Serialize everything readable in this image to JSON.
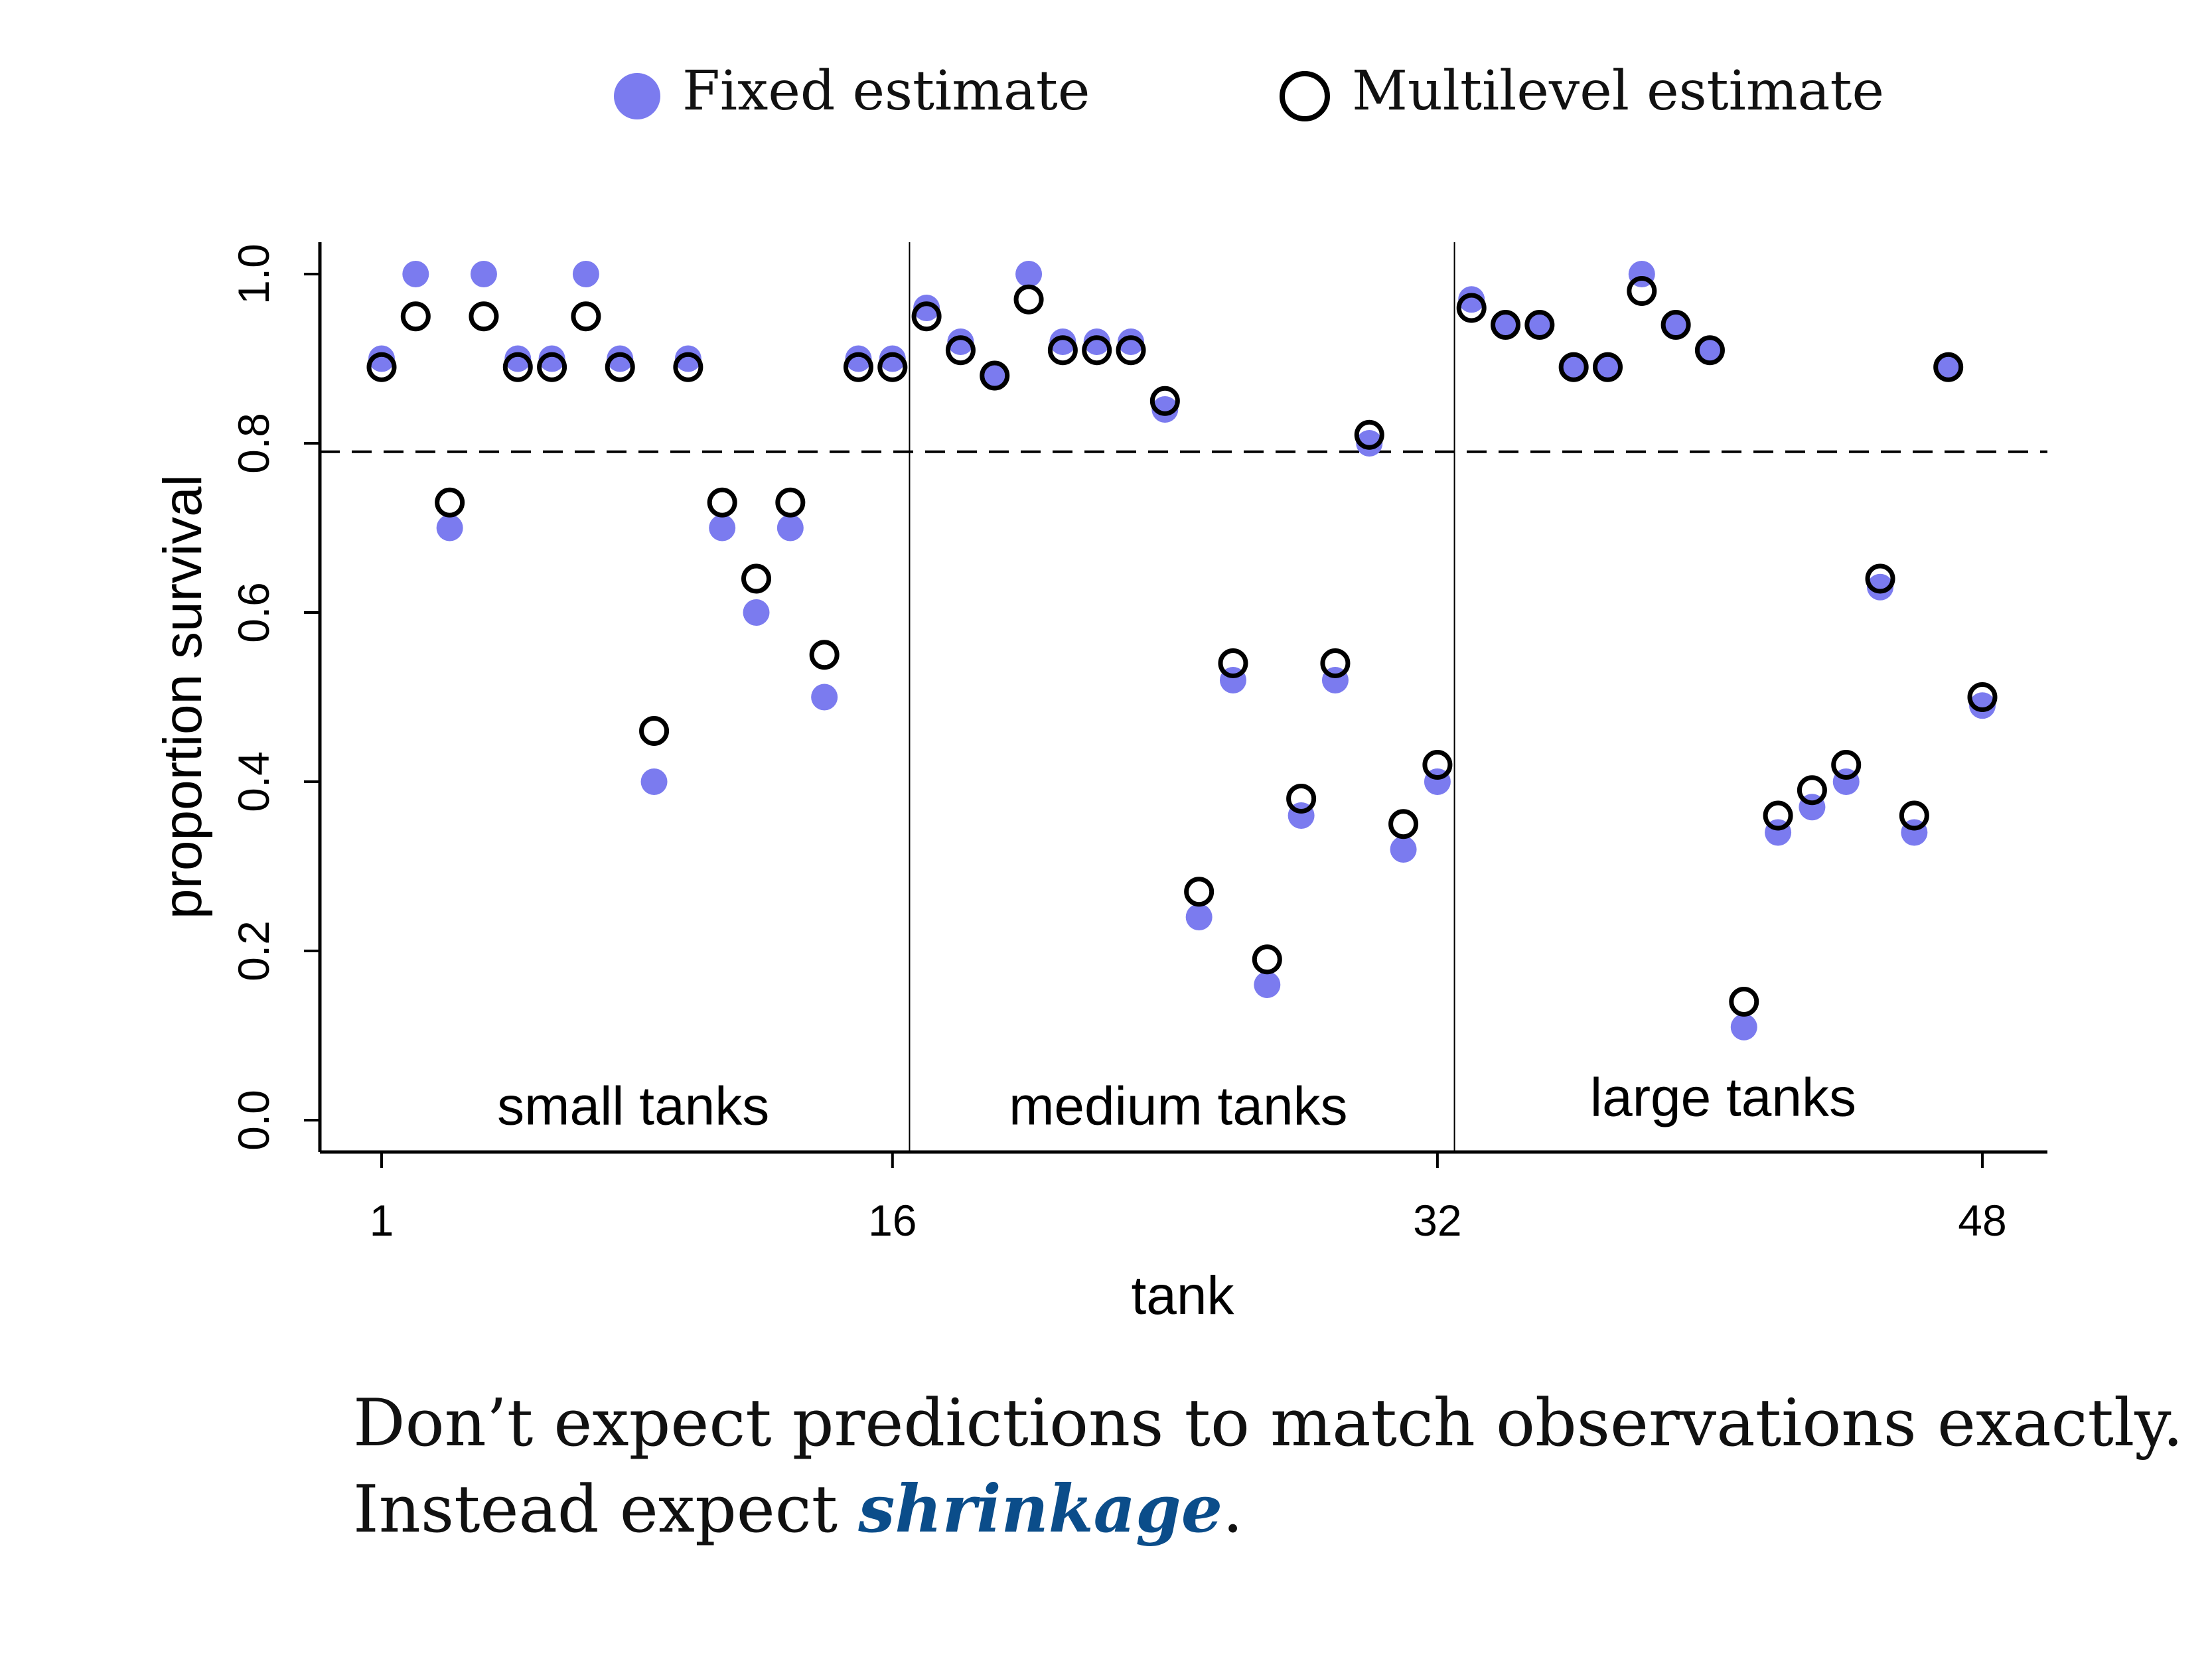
{
  "colors": {
    "fixed_fill": "#7b7bef",
    "multilevel_stroke": "#000000",
    "emphasis": "#0b4d8a",
    "text": "#111111"
  },
  "legend": {
    "fixed_label": "Fixed estimate",
    "multilevel_label": "Multilevel estimate"
  },
  "chart_data": {
    "type": "scatter",
    "xlabel": "tank",
    "ylabel": "proportion survival",
    "xlim": [
      0,
      50.5
    ],
    "ylim": [
      -0.04,
      1.04
    ],
    "x_ticks": [
      1,
      16,
      32,
      48
    ],
    "y_ticks": [
      "0.0",
      "0.2",
      "0.4",
      "0.6",
      "0.8",
      "1.0"
    ],
    "reference_line": 0.79,
    "group_dividers": [
      16.5,
      32.5
    ],
    "group_labels": [
      {
        "text": "small tanks",
        "x": 8.0,
        "y": -0.005
      },
      {
        "text": "medium tanks",
        "x": 24.0,
        "y": -0.005
      },
      {
        "text": "large tanks",
        "x": 40.0,
        "y": 0.005
      }
    ],
    "series": [
      {
        "name": "Fixed estimate",
        "x": [
          1,
          2,
          3,
          4,
          5,
          6,
          7,
          8,
          9,
          10,
          11,
          12,
          13,
          14,
          15,
          16,
          17,
          18,
          19,
          20,
          21,
          22,
          23,
          24,
          25,
          26,
          27,
          28,
          29,
          30,
          31,
          32,
          33,
          34,
          35,
          36,
          37,
          38,
          39,
          40,
          41,
          42,
          43,
          44,
          45,
          46,
          47,
          48
        ],
        "y": [
          0.9,
          1.0,
          0.7,
          1.0,
          0.9,
          0.9,
          1.0,
          0.9,
          0.4,
          0.9,
          0.7,
          0.6,
          0.7,
          0.5,
          0.9,
          0.9,
          0.96,
          0.92,
          0.88,
          1.0,
          0.92,
          0.92,
          0.92,
          0.84,
          0.24,
          0.52,
          0.16,
          0.36,
          0.52,
          0.8,
          0.32,
          0.4,
          0.97,
          0.94,
          0.94,
          0.89,
          0.89,
          1.0,
          0.94,
          0.91,
          0.11,
          0.34,
          0.37,
          0.4,
          0.63,
          0.34,
          0.89,
          0.49
        ]
      },
      {
        "name": "Multilevel estimate",
        "x": [
          1,
          2,
          3,
          4,
          5,
          6,
          7,
          8,
          9,
          10,
          11,
          12,
          13,
          14,
          15,
          16,
          17,
          18,
          19,
          20,
          21,
          22,
          23,
          24,
          25,
          26,
          27,
          28,
          29,
          30,
          31,
          32,
          33,
          34,
          35,
          36,
          37,
          38,
          39,
          40,
          41,
          42,
          43,
          44,
          45,
          46,
          47,
          48
        ],
        "y": [
          0.89,
          0.95,
          0.73,
          0.95,
          0.89,
          0.89,
          0.95,
          0.89,
          0.46,
          0.89,
          0.73,
          0.64,
          0.73,
          0.55,
          0.89,
          0.89,
          0.95,
          0.91,
          0.88,
          0.97,
          0.91,
          0.91,
          0.91,
          0.85,
          0.27,
          0.54,
          0.19,
          0.38,
          0.54,
          0.81,
          0.35,
          0.42,
          0.96,
          0.94,
          0.94,
          0.89,
          0.89,
          0.98,
          0.94,
          0.91,
          0.14,
          0.36,
          0.39,
          0.42,
          0.64,
          0.36,
          0.89,
          0.5
        ]
      }
    ]
  },
  "caption": {
    "line1": "Don’t expect predictions to match observations exactly.",
    "line2_prefix": "Instead expect ",
    "line2_emphasis": "shrinkage",
    "line2_suffix": "."
  }
}
